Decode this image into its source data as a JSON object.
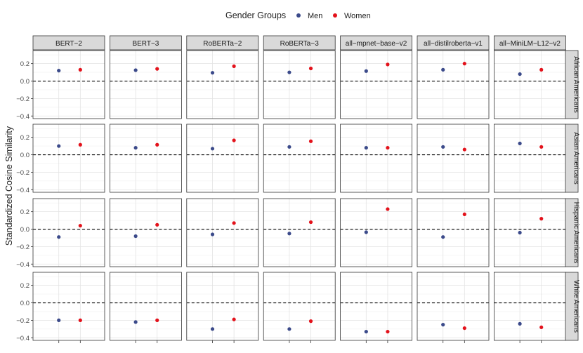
{
  "chart_data": {
    "type": "scatter",
    "ylabel": "Standardized Cosine Similarity",
    "legend": {
      "title": "Gender Groups",
      "position": "top",
      "entries": [
        {
          "label": "Men",
          "color": "#3b4a8a"
        },
        {
          "label": "Women",
          "color": "#e3121b"
        }
      ]
    },
    "ylim": [
      -0.43,
      0.35
    ],
    "yticks": [
      0.2,
      0.0,
      -0.2,
      -0.4
    ],
    "ytick_labels": [
      "0.2",
      "0.0",
      "−0.2",
      "−0.4"
    ],
    "reference_line": 0.0,
    "grid": true,
    "models": [
      "BERT−2",
      "BERT−3",
      "RoBERTa−2",
      "RoBERTa−3",
      "all−mpnet−base−v2",
      "all−distilroberta−v1",
      "all−MiniLM−L12−v2"
    ],
    "groups": [
      "African Americans",
      "Asian Americans",
      "Hispanic Americans",
      "White Americans"
    ],
    "categories": [
      "Men",
      "Women"
    ],
    "series": [
      {
        "name": "Men",
        "color": "#3b4a8a",
        "values": [
          [
            0.12,
            0.125,
            0.095,
            0.1,
            0.115,
            0.13,
            0.08
          ],
          [
            0.1,
            0.08,
            0.07,
            0.09,
            0.08,
            0.09,
            0.13
          ],
          [
            -0.09,
            -0.08,
            -0.06,
            -0.05,
            -0.035,
            -0.09,
            -0.04
          ],
          [
            -0.2,
            -0.22,
            -0.3,
            -0.3,
            -0.33,
            -0.25,
            -0.24
          ]
        ]
      },
      {
        "name": "Women",
        "color": "#e3121b",
        "values": [
          [
            0.13,
            0.14,
            0.17,
            0.145,
            0.19,
            0.2,
            0.13
          ],
          [
            0.115,
            0.115,
            0.165,
            0.155,
            0.08,
            0.06,
            0.09
          ],
          [
            0.04,
            0.05,
            0.07,
            0.08,
            0.23,
            0.17,
            0.12
          ],
          [
            -0.2,
            -0.2,
            -0.19,
            -0.21,
            -0.33,
            -0.29,
            -0.28
          ]
        ]
      }
    ]
  }
}
